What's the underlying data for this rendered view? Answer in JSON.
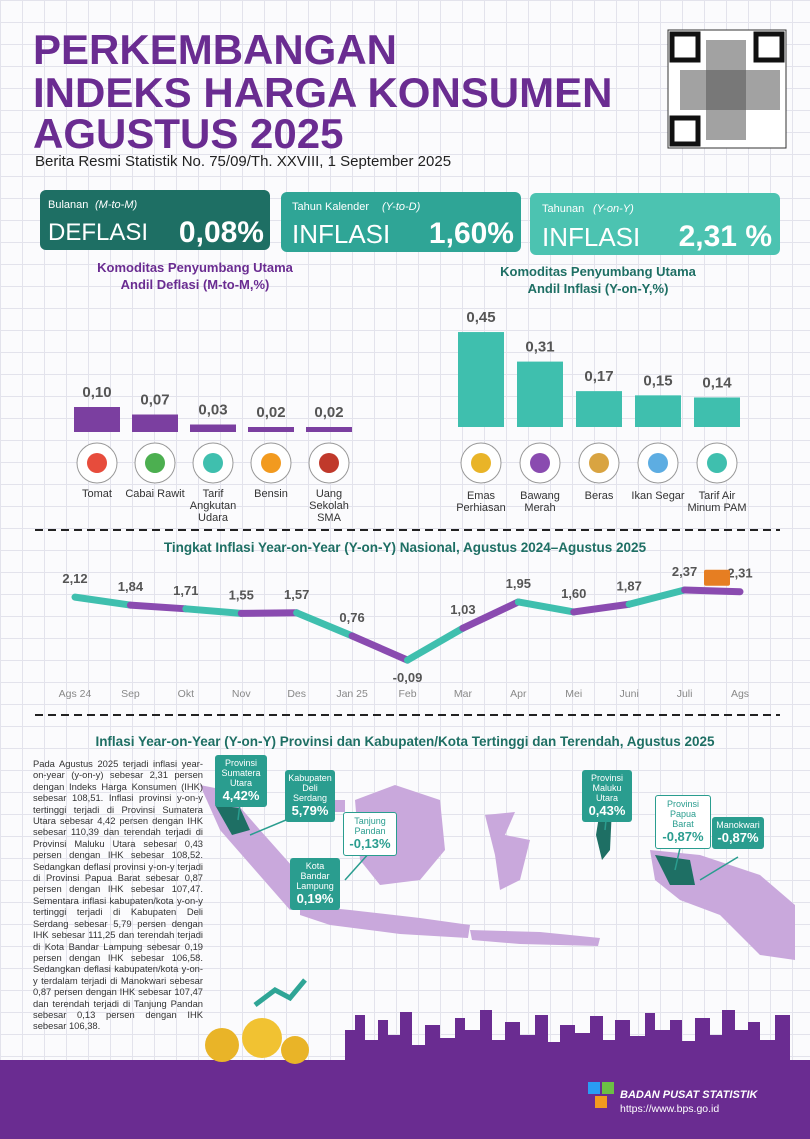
{
  "header": {
    "title_lines": [
      "PERKEMBANGAN",
      "INDEKS HARGA KONSUMEN",
      "AGUSTUS 2025"
    ],
    "subtitle": "Berita Resmi Statistik No. 75/09/Th. XXVIII, 1 September 2025"
  },
  "summary": [
    {
      "period": "Bulanan",
      "period_em": "(M-to-M)",
      "kind": "DEFLASI",
      "value": "0,08%"
    },
    {
      "period": "Tahun Kalender",
      "period_em": "(Y-to-D)",
      "kind": "INFLASI",
      "value": "1,60%"
    },
    {
      "period": "Tahunan",
      "period_em": "(Y-on-Y)",
      "kind": "INFLASI",
      "value": "2,31 %"
    }
  ],
  "chart_data": [
    {
      "type": "bar",
      "title": "Komoditas Penyumbang Utama",
      "subtitle": "Andil Deflasi (M-to-M,%)",
      "categories": [
        "Tomat",
        "Cabai Rawit",
        "Tarif Angkutan Udara",
        "Bensin",
        "Uang Sekolah SMA"
      ],
      "values": [
        0.1,
        0.07,
        0.03,
        0.02,
        0.02
      ],
      "value_labels": [
        "0,10",
        "0,07",
        "0,03",
        "0,02",
        "0,02"
      ],
      "color": "#7b3fa0"
    },
    {
      "type": "bar",
      "title": "Komoditas Penyumbang Utama",
      "subtitle": "Andil Inflasi (Y-on-Y,%)",
      "categories": [
        "Emas Perhiasan",
        "Bawang Merah",
        "Beras",
        "Ikan Segar",
        "Tarif Air Minum PAM"
      ],
      "values": [
        0.45,
        0.31,
        0.17,
        0.15,
        0.14
      ],
      "value_labels": [
        "0,45",
        "0,31",
        "0,17",
        "0,15",
        "0,14"
      ],
      "color": "#3fbfae"
    },
    {
      "type": "line",
      "title": "Tingkat Inflasi Year-on-Year (Y-on-Y) Nasional, Agustus 2024–Agustus 2025",
      "categories": [
        "Ags 24",
        "Sep",
        "Okt",
        "Nov",
        "Des",
        "Jan 25",
        "Feb",
        "Mar",
        "Apr",
        "Mei",
        "Juni",
        "Juli",
        "Ags"
      ],
      "values": [
        2.12,
        1.84,
        1.71,
        1.55,
        1.57,
        0.76,
        -0.09,
        1.03,
        1.95,
        1.6,
        1.87,
        2.37,
        2.31
      ],
      "value_labels": [
        "2,12",
        "1,84",
        "1,71",
        "1,55",
        "1,57",
        "0,76",
        "-0,09",
        "1,03",
        "1,95",
        "1,60",
        "1,87",
        "2,37",
        "2,31"
      ],
      "segment_colors": [
        "#3fbfae",
        "#8a4bb0"
      ]
    }
  ],
  "map": {
    "title": "Inflasi Year-on-Year (Y-on-Y) Provinsi dan Kabupaten/Kota Tertinggi dan Terendah, Agustus 2025",
    "paragraph": "Pada Agustus 2025 terjadi inflasi year-on-year (y-on-y) sebesar 2,31 persen dengan Indeks Harga Konsumen (IHK) sebesar 108,51. Inflasi provinsi y-on-y tertinggi terjadi di Provinsi Sumatera Utara sebesar 4,42 persen dengan IHK sebesar 110,39 dan terendah terjadi di Provinsi Maluku Utara sebesar 0,43 persen dengan IHK sebesar 108,52. Sedangkan deflasi provinsi y-on-y terjadi di Provinsi Papua Barat sebesar 0,87 persen dengan IHK sebesar 107,47. Sementara inflasi kabupaten/kota y-on-y tertinggi terjadi di Kabupaten Deli Serdang sebesar 5,79 persen dengan IHK sebesar 111,25 dan terendah terjadi di Kota Bandar Lampung sebesar 0,19 persen dengan IHK sebesar 106,58. Sedangkan deflasi kabupaten/kota y-on-y terdalam terjadi di Manokwari sebesar 0,87 persen dengan IHK sebesar 107,47 dan terendah terjadi di Tanjung Pandan sebesar 0,13 persen dengan IHK sebesar 106,38.",
    "callouts": [
      {
        "label": "Provinsi Sumatera Utara",
        "value": "4,42%"
      },
      {
        "label": "Kabupaten Deli Serdang",
        "value": "5,79%"
      },
      {
        "label": "Tanjung Pandan",
        "value": "-0,13%"
      },
      {
        "label": "Kota Bandar Lampung",
        "value": "0,19%"
      },
      {
        "label": "Provinsi Maluku Utara",
        "value": "0,43%"
      },
      {
        "label": "Provinsi Papua Barat",
        "value": "-0,87%"
      },
      {
        "label": "Manokwari",
        "value": "-0,87%"
      }
    ]
  },
  "footer": {
    "org": "BADAN PUSAT STATISTIK",
    "url": "https://www.bps.go.id"
  }
}
